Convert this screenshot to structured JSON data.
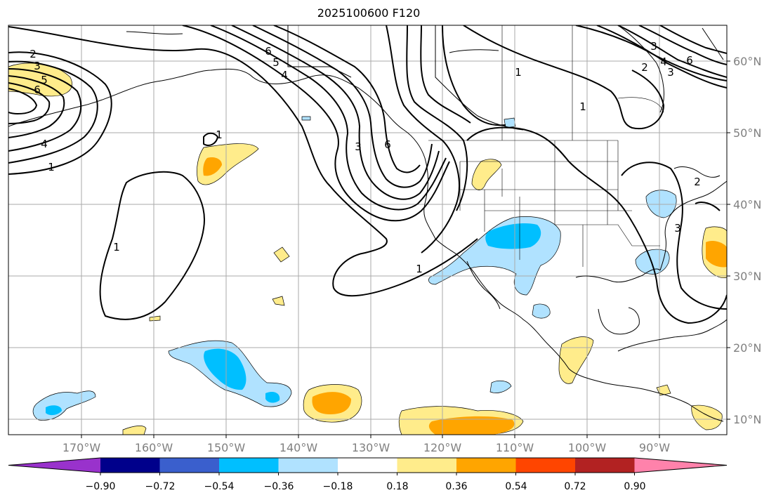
{
  "title": "2025100600 F120",
  "map": {
    "projection": "plate-carree",
    "lon_labels": [
      "170°W",
      "160°W",
      "150°W",
      "140°W",
      "130°W",
      "120°W",
      "110°W",
      "100°W",
      "90°W"
    ],
    "lat_labels": [
      "60°N",
      "50°N",
      "40°N",
      "30°N",
      "20°N",
      "10°N"
    ],
    "contour_labels": [
      {
        "id": "c1",
        "text": "2"
      },
      {
        "id": "c2",
        "text": "3"
      },
      {
        "id": "c3",
        "text": "5"
      },
      {
        "id": "c4",
        "text": "6"
      },
      {
        "id": "c5",
        "text": "4"
      },
      {
        "id": "c6",
        "text": "1"
      },
      {
        "id": "c7",
        "text": "1"
      },
      {
        "id": "c8",
        "text": "1"
      },
      {
        "id": "c9",
        "text": "6"
      },
      {
        "id": "c10",
        "text": "5"
      },
      {
        "id": "c11",
        "text": "4"
      },
      {
        "id": "c12",
        "text": "3"
      },
      {
        "id": "c13",
        "text": "6"
      },
      {
        "id": "c14",
        "text": "1"
      },
      {
        "id": "c15",
        "text": "1"
      },
      {
        "id": "c16",
        "text": "1"
      },
      {
        "id": "c17",
        "text": "3"
      },
      {
        "id": "c18",
        "text": "2"
      },
      {
        "id": "c19",
        "text": "3"
      },
      {
        "id": "c20",
        "text": "4"
      },
      {
        "id": "c21",
        "text": "6"
      },
      {
        "id": "c22",
        "text": "3"
      },
      {
        "id": "c23",
        "text": "2"
      }
    ]
  },
  "colorbar": {
    "tick_labels": [
      "−0.90",
      "−0.72",
      "−0.54",
      "−0.36",
      "−0.18",
      "0.18",
      "0.36",
      "0.54",
      "0.72",
      "0.90"
    ],
    "colors": [
      "#9932cc",
      "#00008b",
      "#3a5fcd",
      "#00bfff",
      "#b0e2ff",
      "#ffffff",
      "#ffec8b",
      "#ffa500",
      "#ff4500",
      "#b22222",
      "#ff82ab"
    ]
  },
  "colors": {
    "pos_light": "#ffec8b",
    "pos_mid": "#ffa500",
    "neg_light": "#b0e2ff",
    "neg_mid": "#00bfff"
  }
}
